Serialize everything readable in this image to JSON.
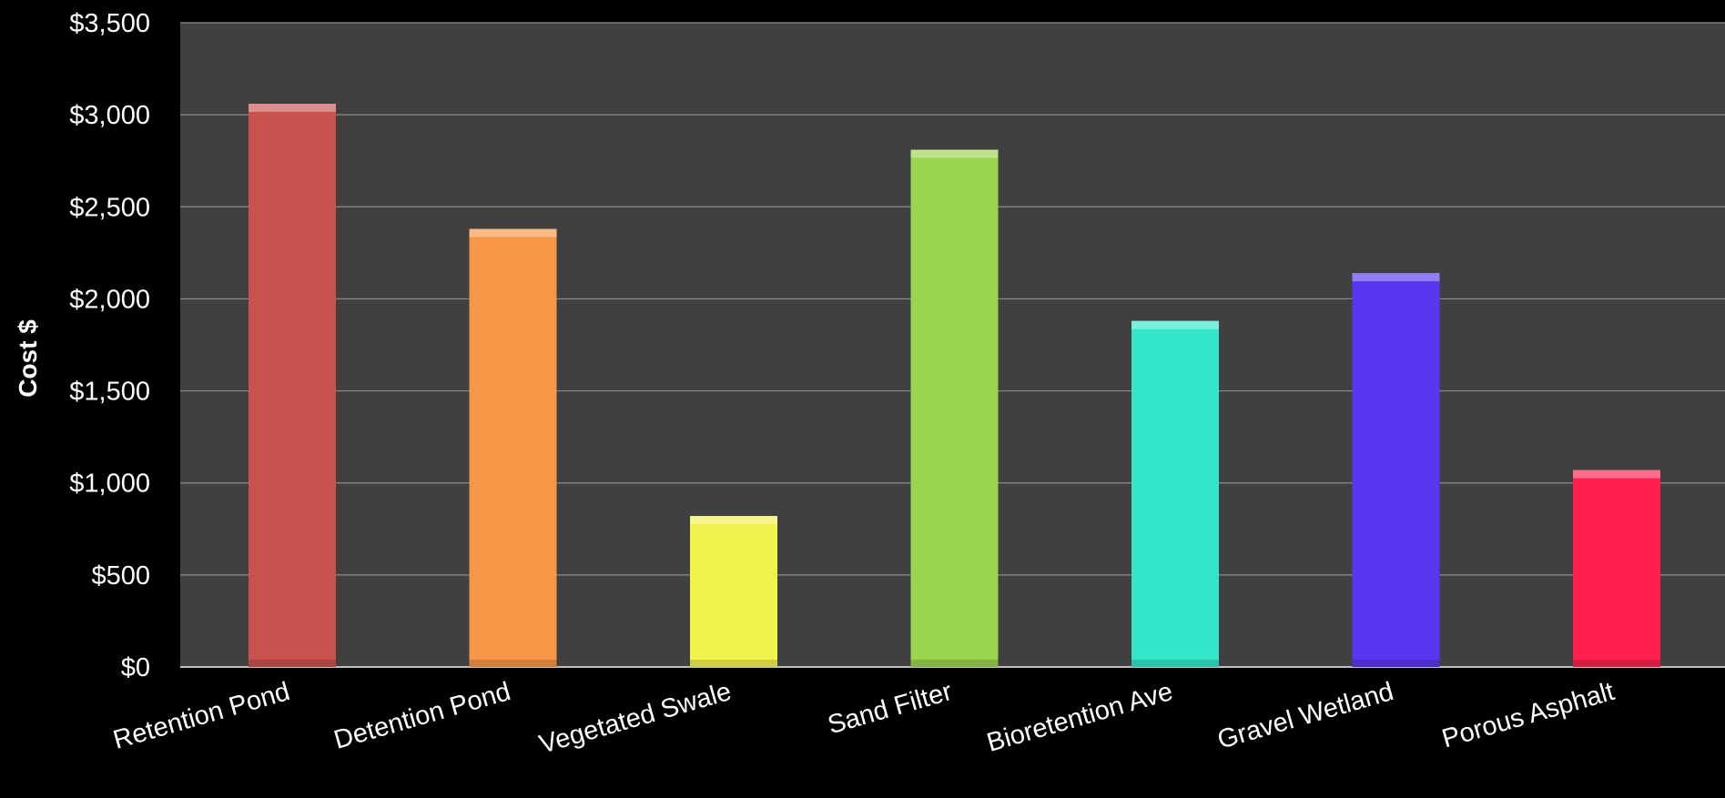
{
  "chart_data": {
    "type": "bar",
    "title": "",
    "xlabel": "",
    "ylabel": "Cost  $",
    "ylim": [
      0,
      3500
    ],
    "yticks": [
      0,
      500,
      1000,
      1500,
      2000,
      2500,
      3000,
      3500
    ],
    "ytick_labels": [
      "$0",
      "$500",
      "$1,000",
      "$1,500",
      "$2,000",
      "$2,500",
      "$3,000",
      "$3,500"
    ],
    "grid": true,
    "categories": [
      "Retention Pond",
      "Detention Pond",
      "Vegetated Swale",
      "Sand Filter",
      "Bioretention Ave",
      "Gravel Wetland",
      "Porous Asphalt"
    ],
    "values": [
      3060,
      2380,
      820,
      2810,
      1880,
      2140,
      1070
    ],
    "colors": [
      "#c9524f",
      "#f79646",
      "#f2f24f",
      "#9bd44f",
      "#33e6c9",
      "#5b36f0",
      "#ff2050"
    ],
    "background": "#404040"
  }
}
